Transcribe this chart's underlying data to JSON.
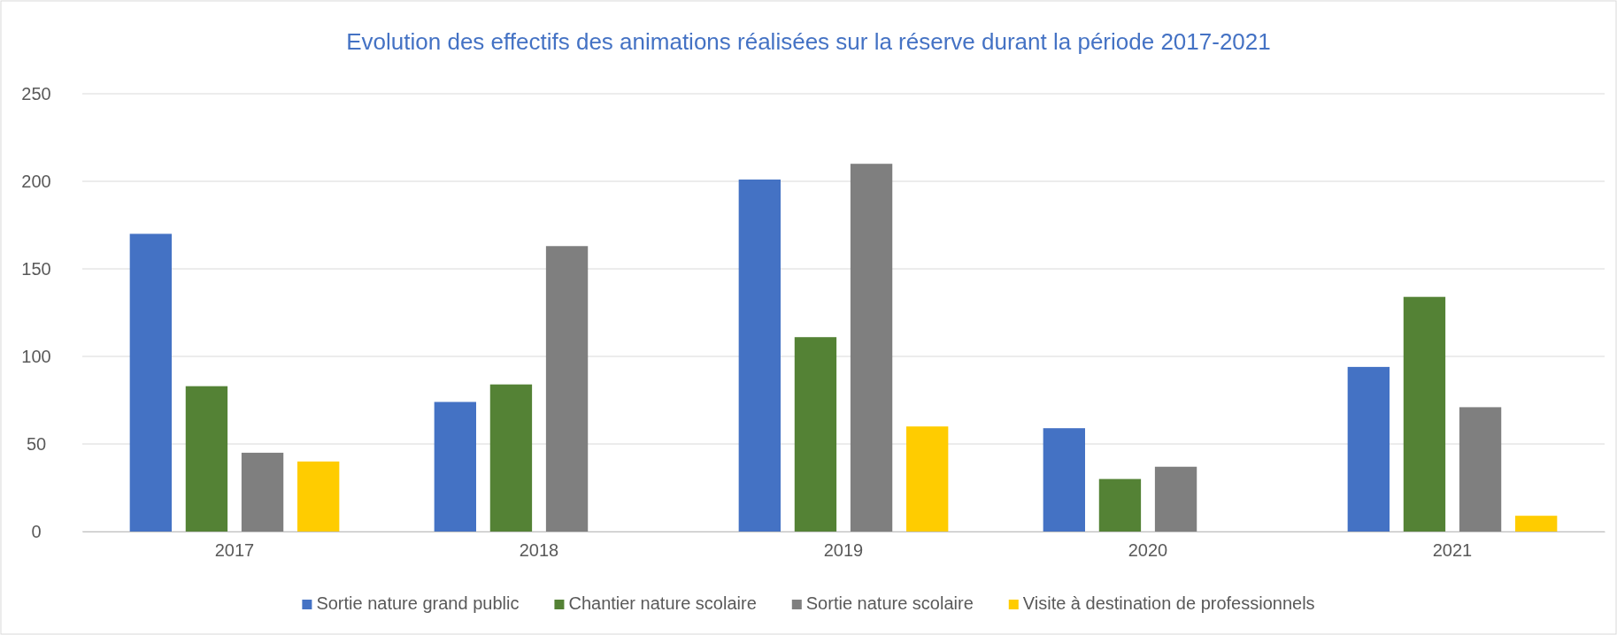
{
  "chart_data": {
    "type": "bar",
    "title": "Evolution des effectifs des animations réalisées sur la réserve durant la période 2017-2021",
    "categories": [
      "2017",
      "2018",
      "2019",
      "2020",
      "2021"
    ],
    "series": [
      {
        "name": "Sortie nature grand public",
        "color": "#4472c4",
        "values": [
          170,
          74,
          201,
          59,
          94
        ]
      },
      {
        "name": "Chantier nature scolaire",
        "color": "#548235",
        "values": [
          83,
          84,
          111,
          30,
          134
        ]
      },
      {
        "name": "Sortie nature scolaire",
        "color": "#7f7f7f",
        "values": [
          45,
          163,
          210,
          37,
          71
        ]
      },
      {
        "name": "Visite à destination de professionnels",
        "color": "#ffcc00",
        "values": [
          40,
          null,
          60,
          null,
          9
        ]
      }
    ],
    "ylim": [
      0,
      250
    ],
    "yticks": [
      0,
      50,
      100,
      150,
      200,
      250
    ],
    "grid": "y",
    "legend": "bottom"
  }
}
